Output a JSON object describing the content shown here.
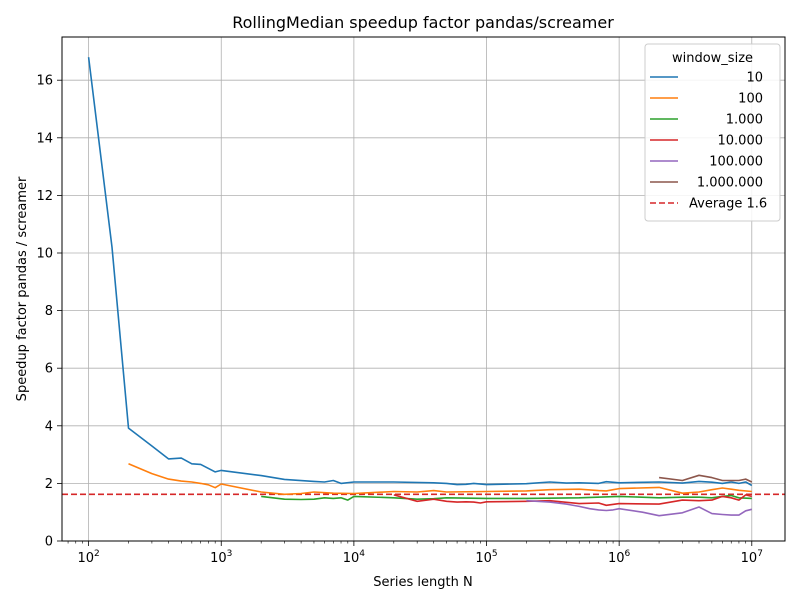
{
  "chart_data": {
    "type": "line",
    "title": "RollingMedian speedup factor pandas/screamer",
    "xlabel": "Series length N",
    "ylabel": "Speedup factor pandas / screamer",
    "xscale": "log",
    "xlim": [
      63,
      17800000
    ],
    "ylim": [
      0,
      17.5
    ],
    "yticks": [
      0,
      2,
      4,
      6,
      8,
      10,
      12,
      14,
      16
    ],
    "xticks": [
      {
        "value": 100,
        "base": "10",
        "exp": "2"
      },
      {
        "value": 1000,
        "base": "10",
        "exp": "3"
      },
      {
        "value": 10000,
        "base": "10",
        "exp": "4"
      },
      {
        "value": 100000,
        "base": "10",
        "exp": "5"
      },
      {
        "value": 1000000,
        "base": "10",
        "exp": "6"
      },
      {
        "value": 10000000,
        "base": "10",
        "exp": "7"
      }
    ],
    "grid": true,
    "legend": {
      "title": "window_size",
      "placement": "top-right"
    },
    "average": {
      "label": "Average 1.6",
      "value": 1.62,
      "color": "#d62728"
    },
    "series": [
      {
        "name": "10",
        "color": "#1f77b4",
        "x": [
          100,
          150,
          200,
          300,
          400,
          500,
          600,
          700,
          900,
          1000,
          2000,
          3000,
          5000,
          6000,
          7000,
          8000,
          10000,
          20000,
          40000,
          50000,
          60000,
          70000,
          80000,
          100000,
          200000,
          300000,
          400000,
          500000,
          700000,
          800000,
          1000000,
          2000000,
          3000000,
          4000000,
          5000000,
          6000000,
          7000000,
          8000000,
          9000000,
          10000000
        ],
        "y": [
          16.8,
          10.2,
          3.92,
          3.3,
          2.85,
          2.88,
          2.68,
          2.66,
          2.4,
          2.45,
          2.27,
          2.14,
          2.07,
          2.05,
          2.1,
          2.0,
          2.05,
          2.05,
          2.02,
          2.0,
          1.96,
          1.97,
          2.0,
          1.96,
          1.99,
          2.05,
          2.01,
          2.02,
          2.0,
          2.06,
          2.02,
          2.05,
          2.01,
          2.07,
          2.04,
          2.0,
          2.05,
          2.0,
          2.05,
          1.93
        ]
      },
      {
        "name": "100",
        "color": "#ff7f0e",
        "x": [
          200,
          300,
          400,
          500,
          600,
          700,
          800,
          900,
          1000,
          2000,
          3000,
          4000,
          5000,
          7000,
          10000,
          20000,
          30000,
          40000,
          50000,
          100000,
          200000,
          300000,
          500000,
          700000,
          800000,
          900000,
          1000000,
          2000000,
          3000000,
          4000000,
          5000000,
          6000000,
          7000000,
          8000000,
          10000000
        ],
        "y": [
          2.68,
          2.34,
          2.15,
          2.08,
          2.05,
          2.0,
          1.95,
          1.85,
          1.98,
          1.7,
          1.62,
          1.65,
          1.7,
          1.66,
          1.65,
          1.72,
          1.7,
          1.75,
          1.7,
          1.72,
          1.74,
          1.78,
          1.8,
          1.75,
          1.74,
          1.78,
          1.82,
          1.86,
          1.66,
          1.7,
          1.78,
          1.84,
          1.8,
          1.76,
          1.72
        ]
      },
      {
        "name": "1.000",
        "color": "#2ca02c",
        "x": [
          2000,
          3000,
          4000,
          5000,
          6000,
          7000,
          8000,
          9000,
          10000,
          20000,
          30000,
          40000,
          50000,
          100000,
          200000,
          500000,
          1000000,
          2000000,
          3000000,
          4000000,
          5000000,
          6000000,
          7000000,
          8000000,
          10000000
        ],
        "y": [
          1.55,
          1.45,
          1.44,
          1.45,
          1.5,
          1.48,
          1.5,
          1.42,
          1.55,
          1.5,
          1.45,
          1.47,
          1.5,
          1.48,
          1.48,
          1.5,
          1.55,
          1.5,
          1.52,
          1.52,
          1.5,
          1.55,
          1.58,
          1.5,
          1.48
        ]
      },
      {
        "name": "10.000",
        "color": "#d62728",
        "x": [
          20000,
          30000,
          40000,
          50000,
          60000,
          70000,
          80000,
          90000,
          100000,
          200000,
          300000,
          500000,
          700000,
          800000,
          1000000,
          2000000,
          3000000,
          4000000,
          5000000,
          6000000,
          7000000,
          8000000,
          9000000,
          10000000
        ],
        "y": [
          1.6,
          1.38,
          1.45,
          1.38,
          1.35,
          1.36,
          1.35,
          1.32,
          1.36,
          1.38,
          1.4,
          1.3,
          1.32,
          1.24,
          1.3,
          1.28,
          1.42,
          1.4,
          1.42,
          1.55,
          1.5,
          1.42,
          1.6,
          1.55
        ]
      },
      {
        "name": "100.000",
        "color": "#9467bd",
        "x": [
          200000,
          300000,
          400000,
          500000,
          600000,
          700000,
          800000,
          900000,
          1000000,
          1500000,
          2000000,
          3000000,
          4000000,
          5000000,
          6000000,
          7000000,
          8000000,
          9000000,
          10000000
        ],
        "y": [
          1.4,
          1.35,
          1.28,
          1.2,
          1.12,
          1.08,
          1.06,
          1.08,
          1.12,
          1.0,
          0.88,
          0.98,
          1.18,
          0.95,
          0.92,
          0.9,
          0.9,
          1.05,
          1.1
        ]
      },
      {
        "name": "1.000.000",
        "color": "#8c564b",
        "x": [
          2000000,
          3000000,
          4000000,
          5000000,
          6000000,
          7000000,
          8000000,
          9000000,
          10000000
        ],
        "y": [
          2.2,
          2.1,
          2.28,
          2.2,
          2.1,
          2.1,
          2.1,
          2.15,
          2.05
        ]
      }
    ]
  }
}
